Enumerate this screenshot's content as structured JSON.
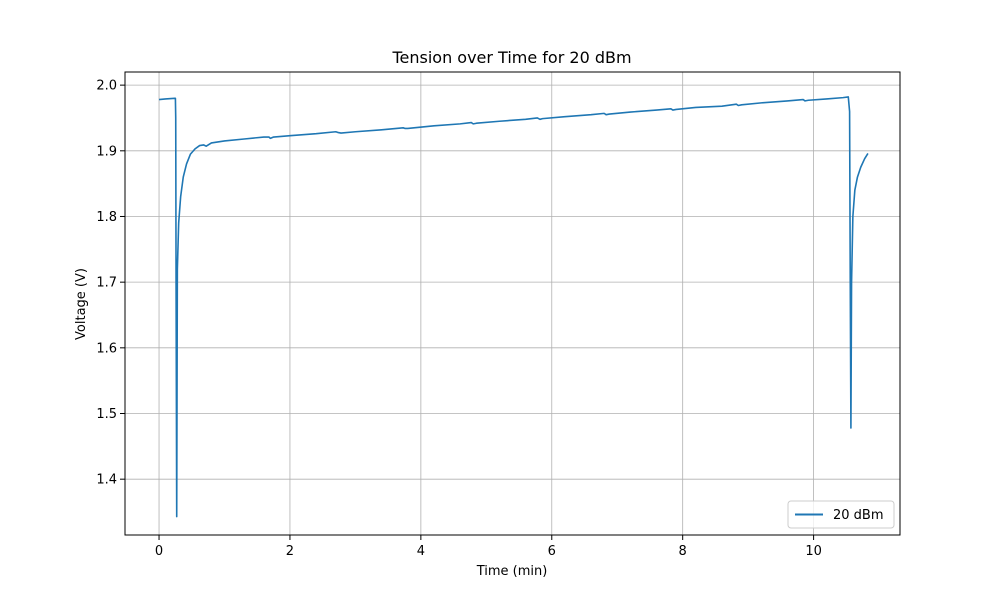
{
  "chart_data": {
    "type": "line",
    "title": "Tension over Time for 20 dBm",
    "xlabel": "Time (min)",
    "ylabel": "Voltage (V)",
    "xlim": [
      -0.52,
      11.32
    ],
    "ylim": [
      1.315,
      2.02
    ],
    "x_ticks": [
      0,
      2,
      4,
      6,
      8,
      10
    ],
    "y_ticks": [
      1.4,
      1.5,
      1.6,
      1.7,
      1.8,
      1.9,
      2.0
    ],
    "x_tick_labels": [
      "0",
      "2",
      "4",
      "6",
      "8",
      "10"
    ],
    "y_tick_labels": [
      "1.4",
      "1.5",
      "1.6",
      "1.7",
      "1.8",
      "1.9",
      "2.0"
    ],
    "grid": true,
    "legend_position": "bottom-right",
    "series": [
      {
        "name": "20 dBm",
        "color": "#1f77b4",
        "x": [
          0,
          0.1,
          0.24,
          0.25,
          0.255,
          0.26,
          0.27,
          0.28,
          0.3,
          0.33,
          0.37,
          0.42,
          0.48,
          0.55,
          0.62,
          0.68,
          0.72,
          0.8,
          1.0,
          1.3,
          1.6,
          1.68,
          1.7,
          1.75,
          2.0,
          2.4,
          2.7,
          2.73,
          2.78,
          3.0,
          3.4,
          3.73,
          3.76,
          3.8,
          4.2,
          4.6,
          4.77,
          4.8,
          4.85,
          5.2,
          5.6,
          5.78,
          5.82,
          5.86,
          6.2,
          6.6,
          6.8,
          6.83,
          6.88,
          7.2,
          7.6,
          7.82,
          7.85,
          7.9,
          8.2,
          8.6,
          8.82,
          8.85,
          8.9,
          9.2,
          9.6,
          9.84,
          9.87,
          9.92,
          10.2,
          10.45,
          10.53,
          10.55,
          10.56,
          10.57,
          10.58,
          10.6,
          10.63,
          10.67,
          10.72,
          10.78,
          10.83
        ],
        "y": [
          1.978,
          1.979,
          1.98,
          1.98,
          1.95,
          1.7,
          1.343,
          1.72,
          1.79,
          1.83,
          1.86,
          1.88,
          1.895,
          1.903,
          1.908,
          1.909,
          1.907,
          1.912,
          1.915,
          1.918,
          1.921,
          1.921,
          1.919,
          1.921,
          1.923,
          1.926,
          1.929,
          1.928,
          1.927,
          1.929,
          1.932,
          1.935,
          1.934,
          1.934,
          1.938,
          1.941,
          1.943,
          1.941,
          1.942,
          1.945,
          1.948,
          1.95,
          1.948,
          1.949,
          1.952,
          1.955,
          1.957,
          1.955,
          1.956,
          1.959,
          1.962,
          1.964,
          1.962,
          1.963,
          1.966,
          1.968,
          1.971,
          1.969,
          1.97,
          1.973,
          1.976,
          1.978,
          1.976,
          1.977,
          1.979,
          1.981,
          1.982,
          1.96,
          1.7,
          1.478,
          1.7,
          1.8,
          1.84,
          1.86,
          1.875,
          1.888,
          1.896
        ]
      }
    ]
  }
}
